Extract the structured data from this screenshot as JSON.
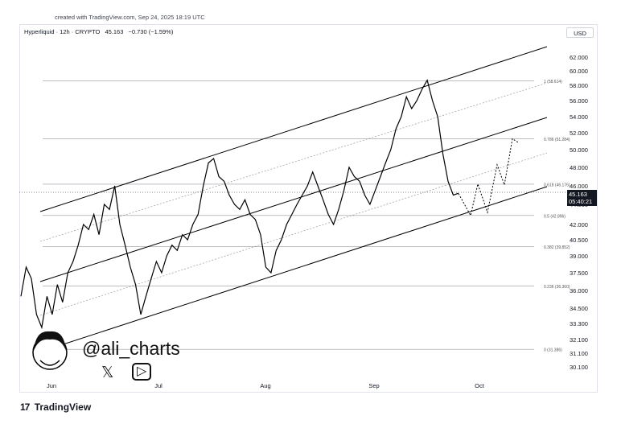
{
  "header": {
    "created_text": "created with TradingView.com, Sep 24, 2025 18:19 UTC",
    "symbol": "Hyperliquid · 12h · CRYPTO",
    "last": "45.163",
    "change": "−0.730 (−1.59%)",
    "currency": "USD"
  },
  "price_tag": {
    "price": "45.163",
    "countdown": "05:40:21"
  },
  "watermark": {
    "handle": "@ali_charts",
    "x_icon": "x-logo-icon",
    "youtube_icon": "youtube-icon"
  },
  "brand": {
    "logo": "17",
    "name": "TradingView"
  },
  "colors": {
    "line": "#000000",
    "fib": "#9598a1",
    "price_bg": "#131722"
  },
  "chart_data": {
    "type": "line",
    "y_ticks": [
      "62.000",
      "60.000",
      "58.000",
      "56.000",
      "54.000",
      "52.000",
      "50.000",
      "48.000",
      "46.000",
      "44.000",
      "42.000",
      "40.500",
      "39.000",
      "37.500",
      "36.000",
      "34.500",
      "33.300",
      "32.100",
      "31.100",
      "30.100"
    ],
    "x_ticks": [
      "Jun",
      "Jul",
      "Aug",
      "Sep",
      "Oct"
    ],
    "fib_levels": [
      {
        "label": "1 (58.614)",
        "value": 58.614
      },
      {
        "label": "0.786 (51.284)",
        "value": 51.284
      },
      {
        "label": "0.618 (46.176)",
        "value": 46.176
      },
      {
        "label": "0.5 (42.896)",
        "value": 42.896
      },
      {
        "label": "0.382 (39.852)",
        "value": 39.852
      },
      {
        "label": "0.236 (36.360)",
        "value": 36.36
      },
      {
        "label": "0 (31.386)",
        "value": 31.386
      }
    ],
    "price": [
      35.5,
      38.0,
      37.0,
      34.0,
      33.0,
      35.5,
      34.0,
      36.5,
      35.0,
      37.5,
      38.5,
      40.0,
      42.0,
      41.5,
      43.0,
      41.0,
      44.0,
      43.5,
      46.0,
      42.0,
      40.0,
      38.0,
      36.5,
      34.0,
      35.5,
      37.0,
      38.5,
      37.5,
      39.0,
      40.0,
      39.5,
      41.0,
      40.5,
      42.0,
      43.0,
      46.0,
      48.5,
      49.0,
      47.0,
      46.5,
      45.0,
      44.0,
      43.5,
      44.5,
      43.0,
      42.5,
      41.0,
      38.0,
      37.5,
      39.5,
      40.5,
      42.0,
      43.0,
      44.0,
      45.0,
      46.0,
      47.5,
      46.0,
      44.5,
      43.0,
      42.0,
      43.5,
      45.5,
      48.0,
      47.0,
      46.5,
      45.0,
      44.0,
      45.5,
      47.0,
      48.5,
      50.0,
      52.5,
      54.0,
      56.5,
      55.0,
      56.0,
      57.5,
      58.7,
      56.0,
      54.0,
      49.5,
      46.5,
      45.0,
      45.2
    ],
    "projection": [
      45.163,
      42.9,
      46.2,
      43.2,
      48.3,
      46.1,
      51.3,
      50.8
    ],
    "handle": "@ali_charts"
  }
}
